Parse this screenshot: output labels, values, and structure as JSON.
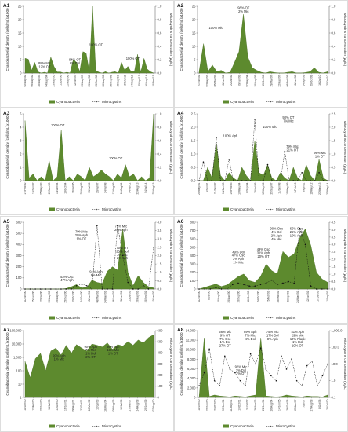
{
  "chart_data": [
    {
      "id": "A1",
      "type": "area",
      "title": "A1",
      "ylabel_left": "Cyanobacterial density (cells/mL)x1000",
      "ylabel_right": "Microcystins concentration (μg/L)",
      "ylim_left": [
        0,
        25
      ],
      "yticks_left": [
        "0",
        "5",
        "10",
        "15",
        "20",
        "25"
      ],
      "ylim_right": [
        0,
        1
      ],
      "yticks_right": [
        "0.0",
        "0.2",
        "0.4",
        "0.6",
        "0.8",
        "1.0"
      ],
      "xticks": [
        "02/Aug/02",
        "09/Aug/02",
        "28/Aug/03",
        "04/Aug/04",
        "25/Aug/05",
        "15/Jul/06",
        "22/Aug/06",
        "12/Jun/07",
        "20/Aug/07",
        "25/Aug/08",
        "25/Nov/08",
        "28/Aug/09",
        "25/Sep/09",
        "15/Aug/10",
        "20/Jul/11",
        "24/Aug/12",
        "20/Apr/13",
        "16/Aug/14",
        "10/Nov/15"
      ],
      "cyanobacteria": [
        5.5,
        5.2,
        1.0,
        4.0,
        0.5,
        0,
        0.3,
        0,
        6.0,
        2.5,
        0.4,
        0.4,
        0,
        0.3,
        0,
        5.0,
        4.0,
        0.5,
        8.0,
        7.5,
        0.5,
        25,
        1.0,
        0.3,
        0,
        0.5,
        0,
        0.3,
        0.5,
        0,
        4.0,
        1.0,
        2.5,
        0.5,
        0.5,
        7.0,
        0.4,
        5.5,
        1.5,
        0.5,
        0
      ],
      "microcystins": null,
      "annotations": [
        {
          "text": [
            "88% Mic",
            "12% OT"
          ],
          "at": 0.16,
          "y": 3.2
        },
        {
          "text": [
            "94% OT",
            "6% Dol"
          ],
          "at": 0.39,
          "y": 4.6
        },
        {
          "text": [
            "100% OT"
          ],
          "at": 0.55,
          "y": 10.1
        },
        {
          "text": [
            "100% OT"
          ],
          "at": 0.83,
          "y": 5.0
        }
      ]
    },
    {
      "id": "A2",
      "type": "area",
      "title": "A2",
      "ylabel_left": "Cyanobacterial density (cells/mL)x1000",
      "ylabel_right": "Microcystins concentration (μg/L)",
      "ylim_left": [
        0,
        25
      ],
      "yticks_left": [
        "0",
        "5",
        "10",
        "15",
        "20",
        "25"
      ],
      "ylim_right": [
        0,
        1
      ],
      "yticks_right": [
        "0.0",
        "0.2",
        "0.4",
        "0.6",
        "0.8",
        "1.0"
      ],
      "xticks": [
        "27/Jun/01",
        "22/May/01",
        "05/Mar/02",
        "16/Jun/02",
        "22/Jul/02",
        "30/Jun/03",
        "27/May/04",
        "20/Aug/05",
        "10/Oct/06",
        "29/Mar/07",
        "22/Aug/07",
        "08/Feb/08",
        "18/Jun/08",
        "14/Apr/09",
        "29/Oct/09",
        "16/Jul/10",
        "20/Jul/10"
      ],
      "cyanobacteria": [
        0.5,
        11,
        0.5,
        3.0,
        0.5,
        1.0,
        0,
        0.3,
        4.0,
        8.0,
        22,
        6.0,
        2.0,
        1.0,
        0.3,
        0,
        0.5,
        0.2,
        0,
        0,
        0.3,
        0.5,
        0,
        0,
        0.2,
        0.5,
        2.0,
        0.3,
        0,
        0.5
      ],
      "microcystins": null,
      "annotations": [
        {
          "text": [
            "100% Mic"
          ],
          "at": 0.14,
          "y": 16.4
        },
        {
          "text": [
            "98% OT",
            "2% Mic"
          ],
          "at": 0.35,
          "y": 24.0
        }
      ]
    },
    {
      "id": "A3",
      "type": "area",
      "title": "A3",
      "ylabel_left": "Cyanobacterial density (cells/mL)x1000",
      "ylabel_right": "Microcystins concentration (μg/L)",
      "ylim_left": [
        0,
        5
      ],
      "yticks_left": [
        "0",
        "1",
        "2",
        "3",
        "4",
        "5"
      ],
      "ylim_right": [
        0,
        1
      ],
      "yticks_right": [
        "0.0",
        "0.2",
        "0.4",
        "0.6",
        "0.8",
        "1.0"
      ],
      "xticks": [
        "27/Feb/02",
        "13/Jun/02",
        "25/May/03",
        "13/Nov/03",
        "10/Jun/04",
        "10/Oct/04",
        "26/Jul/05",
        "20/Aug/05",
        "10/Jul/06",
        "29/Jul/07",
        "24/Jul/08",
        "12/Aug/09",
        "12/Aug/11",
        "04/Jul/12",
        "22/Aug/13",
        "04/Jul/14",
        "25/Aug/15"
      ],
      "cyanobacteria": [
        4.5,
        0.2,
        0.5,
        0,
        0.3,
        0,
        1.5,
        0,
        0.3,
        3.8,
        0,
        0.3,
        0,
        0.5,
        0.3,
        0,
        1.0,
        0.3,
        0.5,
        0.8,
        0.5,
        0.3,
        0,
        0.5,
        0.2,
        1.2,
        0.3,
        0.5,
        0,
        0.3,
        0,
        0.2,
        5.0
      ],
      "microcystins": null,
      "annotations": [
        {
          "text": [
            "100% OT"
          ],
          "at": 0.26,
          "y": 4.05
        },
        {
          "text": [
            "100% OT"
          ],
          "at": 0.7,
          "y": 1.6
        }
      ]
    },
    {
      "id": "A4",
      "type": "area",
      "title": "A4",
      "ylabel_left": "Cyanobacterial density (cells/mL)x1000",
      "ylabel_right": "Microcystins concentration (μg/L)",
      "ylim_left": [
        0,
        2.5
      ],
      "yticks_left": [
        "0.0",
        "0.5",
        "1.0",
        "1.5",
        "2.0",
        "2.5"
      ],
      "ylim_right": [
        0,
        2.5
      ],
      "yticks_right": [
        "0.0",
        "0.5",
        "1.0",
        "1.5",
        "2.0",
        "2.5"
      ],
      "xticks": [
        "25/May/01",
        "3/Jun/01",
        "21/Jan/02",
        "10/Jun/03",
        "25/Feb/03",
        "17/May/04",
        "8/Sep/04",
        "29/Jul/05",
        "13/May/06",
        "29/Sep/07",
        "11/Jan/08",
        "19/May/09",
        "5/Feb/10",
        "3/Apr/11",
        "11/May/12",
        "27/May/13",
        "20/May/14"
      ],
      "cyanobacteria": [
        0,
        0,
        0.5,
        0.1,
        1.4,
        0.2,
        0,
        0.3,
        0.1,
        0,
        0.5,
        0.2,
        0,
        1.5,
        0.3,
        0.2,
        0.6,
        0.1,
        0,
        0.3,
        0.1,
        0,
        0.5,
        0.1,
        0,
        0.6,
        0.2,
        0,
        0.8,
        0.1,
        0
      ],
      "microcystins": [
        0,
        0.7,
        0,
        0,
        1.6,
        0,
        0,
        0.8,
        0,
        0,
        0,
        0,
        0,
        2.3,
        0,
        0,
        0.6,
        0,
        0,
        0,
        1.1,
        0,
        0,
        0,
        0.3,
        0,
        0,
        0,
        0.3,
        0,
        0
      ],
      "annotations": [
        {
          "text": [
            "100% Aph"
          ],
          "at": 0.25,
          "y": 1.63
        },
        {
          "text": [
            "100% Mic"
          ],
          "at": 0.55,
          "y": 1.97
        },
        {
          "text": [
            "93% OT",
            "7% Mic"
          ],
          "at": 0.69,
          "y": 2.32
        },
        {
          "text": [
            "79% Mic",
            "21% OT"
          ],
          "at": 0.72,
          "y": 1.23
        },
        {
          "text": [
            "99% Mic",
            "1% OT"
          ],
          "at": 0.93,
          "y": 1.0
        }
      ]
    },
    {
      "id": "A5",
      "type": "area",
      "title": "A5",
      "ylabel_left": "Cyanobacterial density (cells/mL)x1000",
      "ylabel_right": "Microcystins concentration (μg/L)",
      "ylim_left": [
        0,
        600
      ],
      "yticks_left": [
        "0",
        "100",
        "200",
        "300",
        "400",
        "500",
        "600"
      ],
      "ylim_right": [
        0,
        4
      ],
      "yticks_right": [
        "0.0",
        "0.5",
        "1.0",
        "1.5",
        "2.0",
        "2.5",
        "3.0",
        "3.5",
        "4.0"
      ],
      "xticks": [
        "11/Jun/00",
        "25/Jun/00",
        "20/Jul/00",
        "03/Aug/00",
        "29/Aug/00",
        "25/Sep/00",
        "10/Oct/00",
        "24/Oct/00",
        "15/Jan/01",
        "08/Mar/01",
        "24/May/01",
        "06/Jun/01",
        "28/Jun/01",
        "15/Jul/01",
        "10/Aug/01",
        "10/Sep/01",
        "10/Jan/02"
      ],
      "cyanobacteria": [
        0,
        0,
        0,
        0,
        0,
        0,
        0,
        0,
        5,
        20,
        40,
        10,
        15,
        80,
        60,
        50,
        160,
        200,
        170,
        540,
        150,
        30,
        120,
        60,
        20,
        10
      ],
      "microcystins": [
        0,
        0,
        0,
        0,
        0,
        0,
        0,
        0,
        0,
        0,
        0.2,
        0.3,
        0.2,
        0,
        3.8,
        0,
        0,
        0,
        3.8,
        2.0,
        0.4,
        0,
        0,
        0.2,
        0,
        2.5
      ],
      "annotations": [
        {
          "text": [
            "53% Osc",
            "47% Aph"
          ],
          "at": 0.33,
          "y": 100
        },
        {
          "text": [
            "79% Mic",
            "20% Aph",
            "1% OT"
          ],
          "at": 0.44,
          "y": 505
        },
        {
          "text": [
            "91% Aph",
            "9% Mic"
          ],
          "at": 0.55,
          "y": 145
        },
        {
          "text": [
            "75% Mic",
            "25% Aph"
          ],
          "at": 0.74,
          "y": 555
        },
        {
          "text": [
            "70% OT",
            "25% Dol",
            "3% Mic",
            "2% Aph"
          ],
          "at": 0.75,
          "y": 360
        }
      ]
    },
    {
      "id": "A6",
      "type": "area",
      "title": "A6",
      "ylabel_left": "Cyanobacterial density (cells/mL)x1000",
      "ylabel_right": "Microcystins concentration (μg/L)",
      "ylim_left": [
        0,
        800
      ],
      "yticks_left": [
        "0",
        "100",
        "200",
        "300",
        "400",
        "500",
        "600",
        "700",
        "800"
      ],
      "ylim_right": [
        0,
        4.5
      ],
      "yticks_right": [
        "0.0",
        "0.5",
        "1.0",
        "1.5",
        "2.0",
        "2.5",
        "3.0",
        "3.5",
        "4.0",
        "4.5"
      ],
      "xticks": [
        "11/Jun/00",
        "6/Jul/00",
        "8/Aug/00",
        "20/Aug/00",
        "10/Sep/00",
        "18/Oct/00",
        "24/Oct/00",
        "5/Feb/01",
        "28/Mar/01",
        "23/Apr/01",
        "24/May/01",
        "12/Jun/01",
        "17/Jul/01",
        "11/Sep/01"
      ],
      "cyanobacteria": [
        0,
        20,
        40,
        60,
        30,
        50,
        100,
        150,
        180,
        100,
        80,
        150,
        300,
        220,
        180,
        450,
        380,
        420,
        610,
        720,
        520,
        200,
        120,
        80
      ],
      "microcystins": [
        0,
        0,
        0,
        0.1,
        0,
        0,
        0.3,
        0.4,
        0.3,
        0.2,
        0.2,
        0.3,
        0.4,
        0.6,
        0.3,
        0.4,
        0.5,
        0.4,
        4.1,
        3.0,
        0.2,
        0,
        0,
        0
      ],
      "annotations": [
        {
          "text": [
            "49% Dol",
            "47% Osc",
            "3% Aph",
            "1% Mic"
          ],
          "at": 0.31,
          "y": 430
        },
        {
          "text": [
            "49% Osc",
            "31% Aph",
            "20% OT"
          ],
          "at": 0.5,
          "y": 460
        },
        {
          "text": [
            "90% Osc",
            "4% Dol",
            "2% Aph",
            "4% Mic"
          ],
          "at": 0.6,
          "y": 710
        },
        {
          "text": [
            "65% Osc",
            "25% Aph",
            "10% Aph"
          ],
          "at": 0.75,
          "y": 710
        }
      ]
    },
    {
      "id": "A7",
      "type": "area",
      "title": "A7",
      "ylabel_left": "Cyanobacterial density (cells/mL)x1000",
      "ylabel_right": "Microcystins concentration (μg/L)",
      "scale_left": "log",
      "ylim_left": [
        1,
        100000
      ],
      "yticks_left": [
        "1",
        "10",
        "100",
        "1,000",
        "10,000",
        "100,000"
      ],
      "ylim_right": [
        0,
        600
      ],
      "yticks_right": [
        "0",
        "100",
        "200",
        "300",
        "400",
        "500",
        "600"
      ],
      "xticks": [
        "11/Jan/00",
        "13/Apr/00",
        "21/Jun/00",
        "10/Jul/00",
        "17/Oct/00",
        "16/Jan/01",
        "06/Aug/01",
        "22/Oct/01",
        "18/Mar/02",
        "12/Jul/03",
        "18/May/04",
        "09/Aug/05",
        "12/Jul/06",
        "27/Mar/07",
        "14/Aug/08",
        "29/Jun/09",
        "07/Aug/10"
      ],
      "cyanobacteria": [
        500,
        30,
        800,
        2000,
        100,
        3000,
        5000,
        1500,
        8000,
        2000,
        9000,
        5000,
        3000,
        10000,
        8000,
        6000,
        12000,
        4000,
        9000,
        7000,
        15000,
        8000,
        20000,
        12000,
        30000,
        50000
      ],
      "microcystins": null,
      "annotations": [
        {
          "text": [
            "99% Aph",
            "1% Mic"
          ],
          "at": 0.27,
          "y": 1100
        },
        {
          "text": [
            "90% Aph",
            "7% Mic",
            "1% Dol",
            "2% OT"
          ],
          "at": 0.51,
          "y": 5200
        },
        {
          "text": [
            "86% Aph",
            "13% Mic",
            "1% OT"
          ],
          "at": 0.68,
          "y": 5200
        }
      ]
    },
    {
      "id": "A8",
      "type": "area",
      "title": "A8",
      "ylabel_left": "Cyanobacterial density (cells/mL)x1000",
      "ylabel_right": "Microcystins concentration (μg/L)",
      "scale_right": "log",
      "ylim_left": [
        0,
        14000
      ],
      "yticks_left": [
        "0",
        "2,000",
        "4,000",
        "6,000",
        "8,000",
        "10,000",
        "12,000",
        "14,000"
      ],
      "ylim_right": [
        0.1,
        1000
      ],
      "yticks_right": [
        "0.1",
        "1.0",
        "10.0",
        "100.0",
        "1,000.0"
      ],
      "xticks": [
        "11/Jun/00",
        "21/Jun/00",
        "27/Oct/00",
        "30/Jan/01",
        "11/May/01",
        "17/Oct/01",
        "31/Jul/02",
        "26/Apr/03",
        "22/Jun/04",
        "16/Aug/04",
        "14/Jun/05",
        "26/Oct/06",
        "25/Apr/07",
        "7/Jul/07",
        "17/Aug/08",
        "8/Oct/08",
        "20/Jul/10"
      ],
      "cyanobacteria": [
        0,
        12500,
        200,
        500,
        300,
        200,
        100,
        300,
        200,
        100,
        300,
        500,
        12500,
        300,
        200,
        100,
        200,
        500,
        300,
        200,
        100,
        300,
        200,
        200,
        100,
        500
      ],
      "microcystins": [
        0.5,
        3,
        80,
        1,
        0.5,
        30,
        5,
        3,
        1,
        0.5,
        40,
        10,
        90,
        5,
        2,
        1,
        30,
        5,
        20,
        1,
        0.5,
        8,
        15,
        0.5,
        2,
        10
      ],
      "annotations": [
        {
          "text": [
            "56% Mic",
            "9% OT",
            "7% Osc",
            "1% Dol",
            "27% OT"
          ],
          "at": 0.21,
          "y": 13500
        },
        {
          "text": [
            "92% Mic",
            "1% Dol",
            "7% OT"
          ],
          "at": 0.33,
          "y": 6200
        },
        {
          "text": [
            "89% Aph",
            "7% Mic",
            "4% Dol"
          ],
          "at": 0.4,
          "y": 13500
        },
        {
          "text": [
            "75% Mic",
            "17% Dol",
            "8% Aph"
          ],
          "at": 0.57,
          "y": 13500
        },
        {
          "text": [
            "41% Aph",
            "29% Mic",
            "10% Plank",
            "1% Dol",
            "19% OT"
          ],
          "at": 0.76,
          "y": 13500
        }
      ]
    }
  ],
  "legend": {
    "cyanobacteria": "Cyanobacteria",
    "microcystins": "Microcystins"
  },
  "colors": {
    "area_fill": "#5d8a2e",
    "area_stroke": "#4a7024",
    "mc_line": "#111111",
    "axis": "#555555"
  }
}
